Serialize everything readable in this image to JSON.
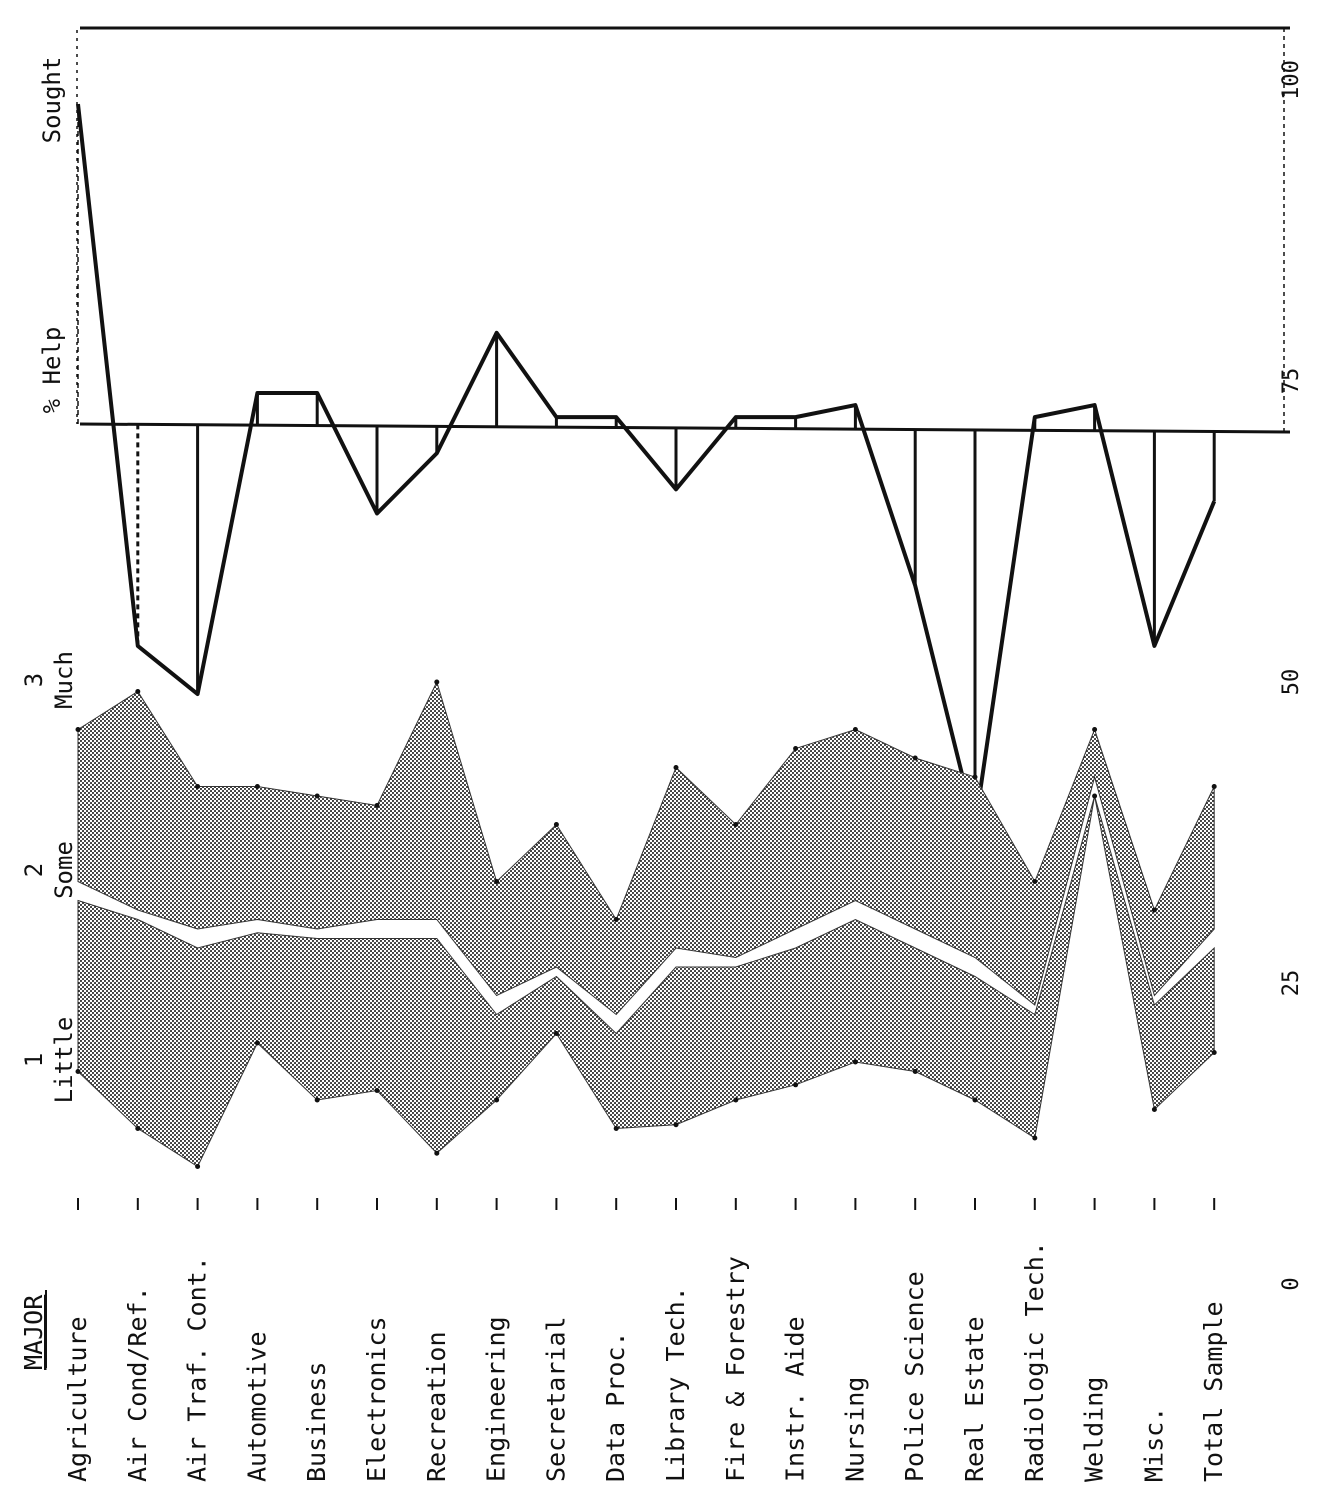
{
  "chart_data": [
    {
      "type": "line",
      "title": "",
      "ylabel": "% Help Sought",
      "ylabel_parts": [
        "% Help",
        "Sought"
      ],
      "ylim": [
        0,
        100
      ],
      "yticks": [
        "0",
        "25",
        "50",
        "75",
        "100"
      ],
      "categories": [
        "Agriculture",
        "Air Cond/Ref.",
        "Air Traf. Cont.",
        "Automotive",
        "Business",
        "Electronics",
        "Recreation",
        "Engineering",
        "Secretarial",
        "Data Proc.",
        "Library Tech.",
        "Fire & Forestry",
        "Instr. Aide",
        "Nursing",
        "Police Science",
        "Real Estate",
        "Radiologic Tech.",
        "Welding",
        "Misc.",
        "Total Sample"
      ],
      "values": [
        98,
        53,
        49,
        74,
        74,
        64,
        69,
        79,
        72,
        72,
        66,
        72,
        72,
        73,
        58,
        38,
        72,
        73,
        53,
        65
      ],
      "bars": true,
      "grid": false,
      "color": "#111111"
    },
    {
      "type": "area",
      "title": "",
      "xlabel": "MAJOR",
      "scale_labels": [
        "Little",
        "Some",
        "Much"
      ],
      "scale_numbers": [
        "1",
        "2",
        "3"
      ],
      "ylim": [
        0.6,
        3.6
      ],
      "categories": [
        "Agriculture",
        "Air Cond/Ref.",
        "Air Traf. Cont.",
        "Automotive",
        "Business",
        "Electronics",
        "Recreation",
        "Engineering",
        "Secretarial",
        "Data Proc.",
        "Library Tech.",
        "Fire & Forestry",
        "Instr. Aide",
        "Nursing",
        "Police Science",
        "Real Estate",
        "Radiologic Tech.",
        "Welding",
        "Misc.",
        "Total Sample"
      ],
      "series": [
        {
          "values": [
            2.95,
            3.15,
            2.65,
            2.65,
            2.6,
            2.55,
            3.2,
            2.15,
            2.45,
            1.95,
            2.75,
            2.45,
            2.85,
            2.95,
            2.8,
            2.7,
            2.15,
            2.95,
            2.0,
            2.65
          ]
        },
        {
          "values": [
            2.15,
            2.0,
            1.9,
            1.95,
            1.9,
            1.95,
            1.95,
            1.55,
            1.7,
            1.45,
            1.8,
            1.75,
            1.9,
            2.05,
            1.9,
            1.75,
            1.5,
            2.7,
            1.55,
            1.9
          ]
        },
        {
          "values": [
            2.05,
            1.95,
            1.8,
            1.88,
            1.85,
            1.85,
            1.85,
            1.45,
            1.65,
            1.35,
            1.7,
            1.7,
            1.8,
            1.95,
            1.8,
            1.65,
            1.45,
            2.6,
            1.5,
            1.8
          ]
        },
        {
          "values": [
            1.15,
            0.85,
            0.65,
            1.3,
            1.0,
            1.05,
            0.72,
            1.0,
            1.35,
            0.85,
            0.87,
            1.0,
            1.08,
            1.2,
            1.15,
            1.0,
            0.8,
            2.6,
            0.95,
            1.25
          ]
        }
      ],
      "fill_color": "#9a9a9a",
      "grid": false
    }
  ]
}
